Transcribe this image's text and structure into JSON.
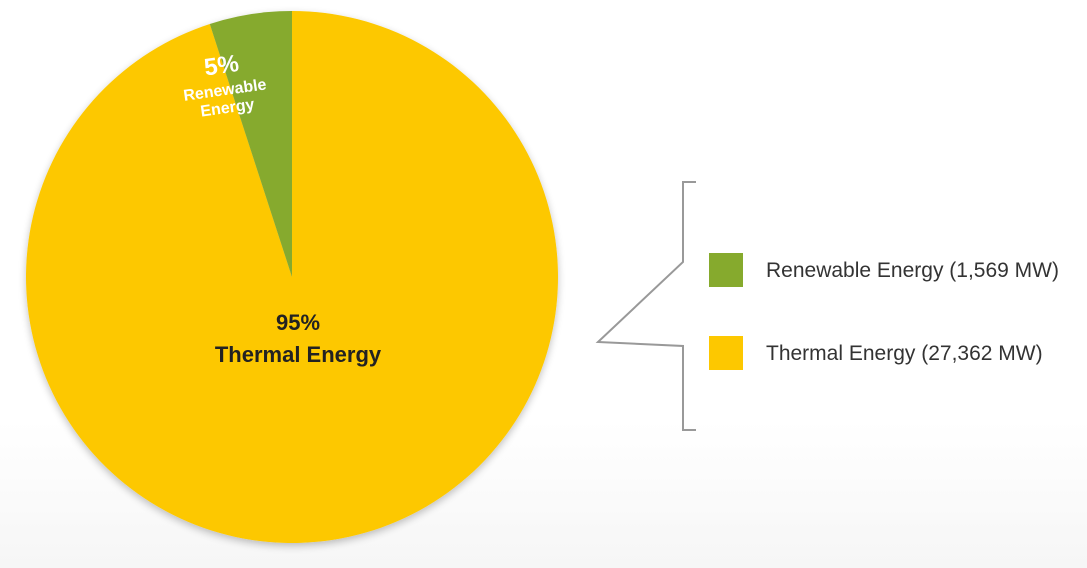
{
  "chart_data": {
    "type": "pie",
    "title": "",
    "slices": [
      {
        "key": "renewable",
        "name": "Renewable Energy",
        "percent": 5,
        "value_mw": 1569,
        "percent_label": "5%",
        "label_line1": "Renewable",
        "label_line2": "Energy",
        "legend_label": "Renewable Energy (1,569 MW)",
        "color": "#86aa2d",
        "label_color": "#ffffff"
      },
      {
        "key": "thermal",
        "name": "Thermal Energy",
        "percent": 95,
        "value_mw": 27362,
        "percent_label": "95%",
        "label_line1": "Thermal Energy",
        "legend_label": "Thermal Energy (27,362 MW)",
        "color": "#fdc800",
        "label_color": "#222222"
      }
    ],
    "legend": {
      "placement": "right",
      "style": "bracket"
    },
    "bracket_color": "#999999"
  }
}
